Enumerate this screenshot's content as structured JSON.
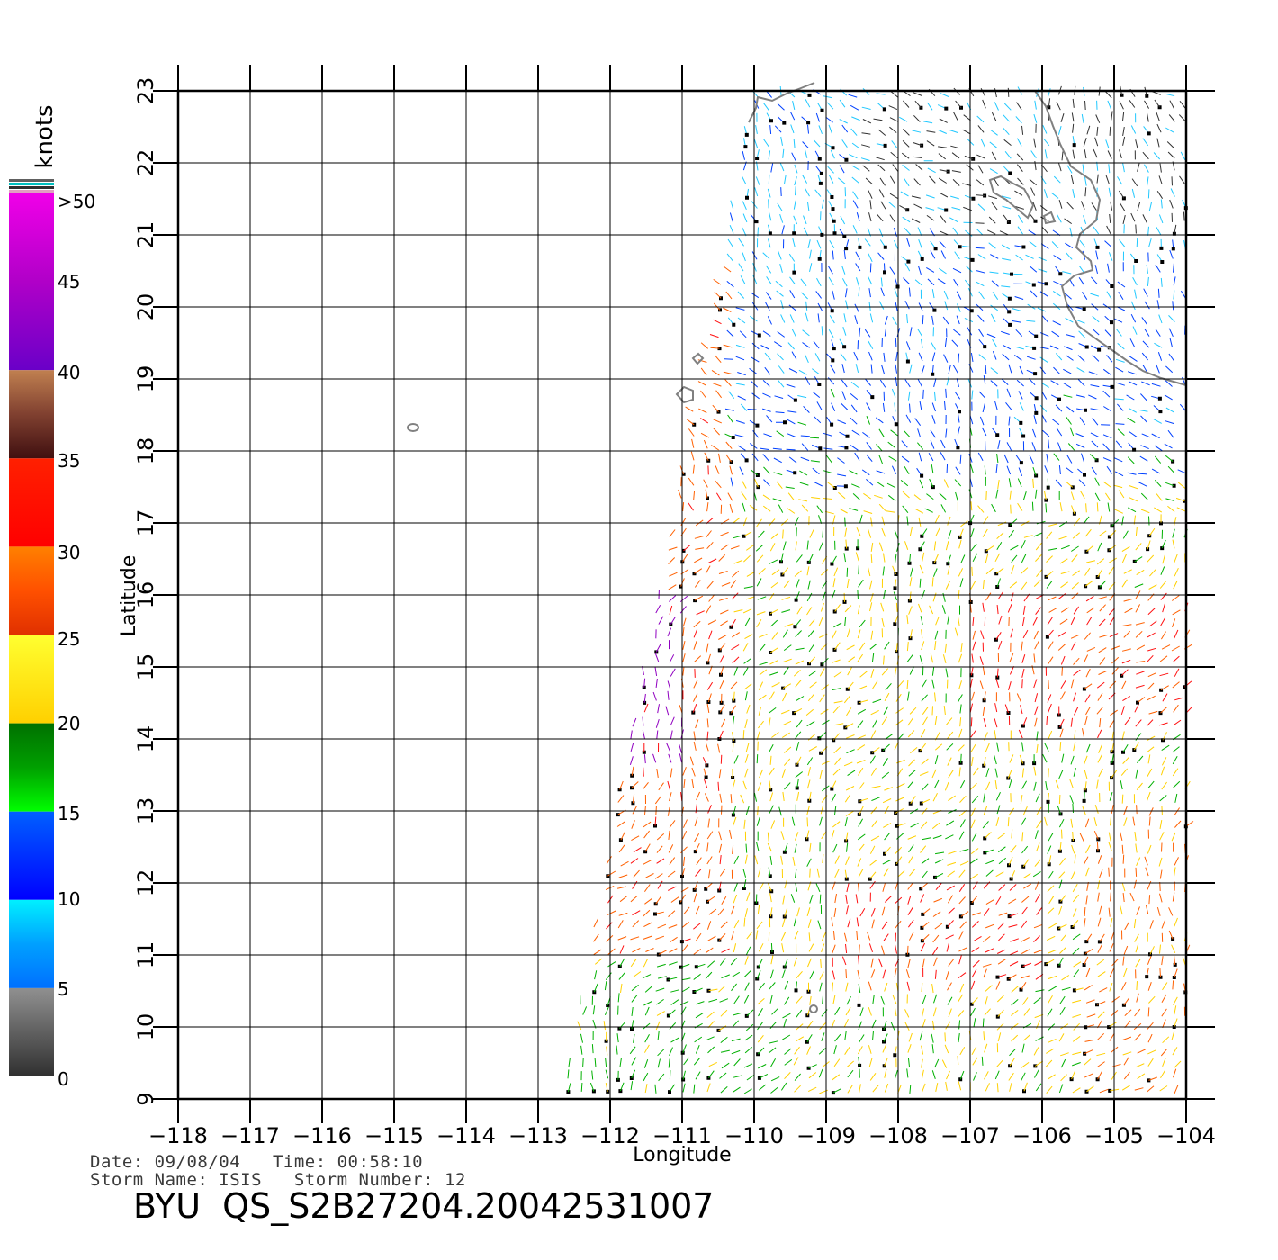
{
  "map": {
    "lon_range": [
      -118,
      -104
    ],
    "lat_range": [
      9,
      23
    ],
    "lon_ticks": [
      "−118",
      "−117",
      "−116",
      "−115",
      "−114",
      "−113",
      "−112",
      "−111",
      "−110",
      "−109",
      "−108",
      "−107",
      "−106",
      "−105",
      "−104"
    ],
    "lat_ticks": [
      "9",
      "10",
      "11",
      "12",
      "13",
      "14",
      "15",
      "16",
      "17",
      "18",
      "19",
      "20",
      "21",
      "22",
      "23"
    ],
    "xlabel": "Longitude",
    "ylabel": "Latitude",
    "grid": true,
    "coastline_color": "#808080"
  },
  "colorbar": {
    "title": "knots",
    "labels": [
      ">50",
      "45",
      "40",
      "35",
      "30",
      "25",
      "20",
      "15",
      "10",
      "5",
      "0"
    ],
    "bands": [
      {
        "min": 40,
        "max": 50,
        "colors": [
          "#f000e8",
          "#b000c8",
          "#6a00c8"
        ]
      },
      {
        "min": 35,
        "max": 40,
        "colors": [
          "#c08050",
          "#804030",
          "#401010"
        ]
      },
      {
        "min": 30,
        "max": 35,
        "colors": [
          "#ff2000",
          "#ff0000"
        ]
      },
      {
        "min": 25,
        "max": 30,
        "colors": [
          "#ff8000",
          "#ff5000",
          "#e03000"
        ]
      },
      {
        "min": 20,
        "max": 25,
        "colors": [
          "#ffff30",
          "#ffd000"
        ]
      },
      {
        "min": 15,
        "max": 20,
        "colors": [
          "#007000",
          "#00a000",
          "#00ff00"
        ]
      },
      {
        "min": 10,
        "max": 15,
        "colors": [
          "#0060ff",
          "#0000ff"
        ]
      },
      {
        "min": 5,
        "max": 10,
        "colors": [
          "#00f0ff",
          "#00a0ff",
          "#0070ff"
        ]
      },
      {
        "min": 0,
        "max": 5,
        "colors": [
          "#909090",
          "#303030"
        ]
      }
    ]
  },
  "swath": {
    "corners_lonlat": [
      [
        -112.7,
        9
      ],
      [
        -104,
        9
      ],
      [
        -104,
        23
      ],
      [
        -110,
        23
      ]
    ]
  },
  "info": {
    "line1": "Date: 09/08/04   Time: 00:58:10",
    "line2": "Storm Name: ISIS   Storm Number: 12",
    "file_id": "BYU  QS_S2B27204.20042531007"
  }
}
